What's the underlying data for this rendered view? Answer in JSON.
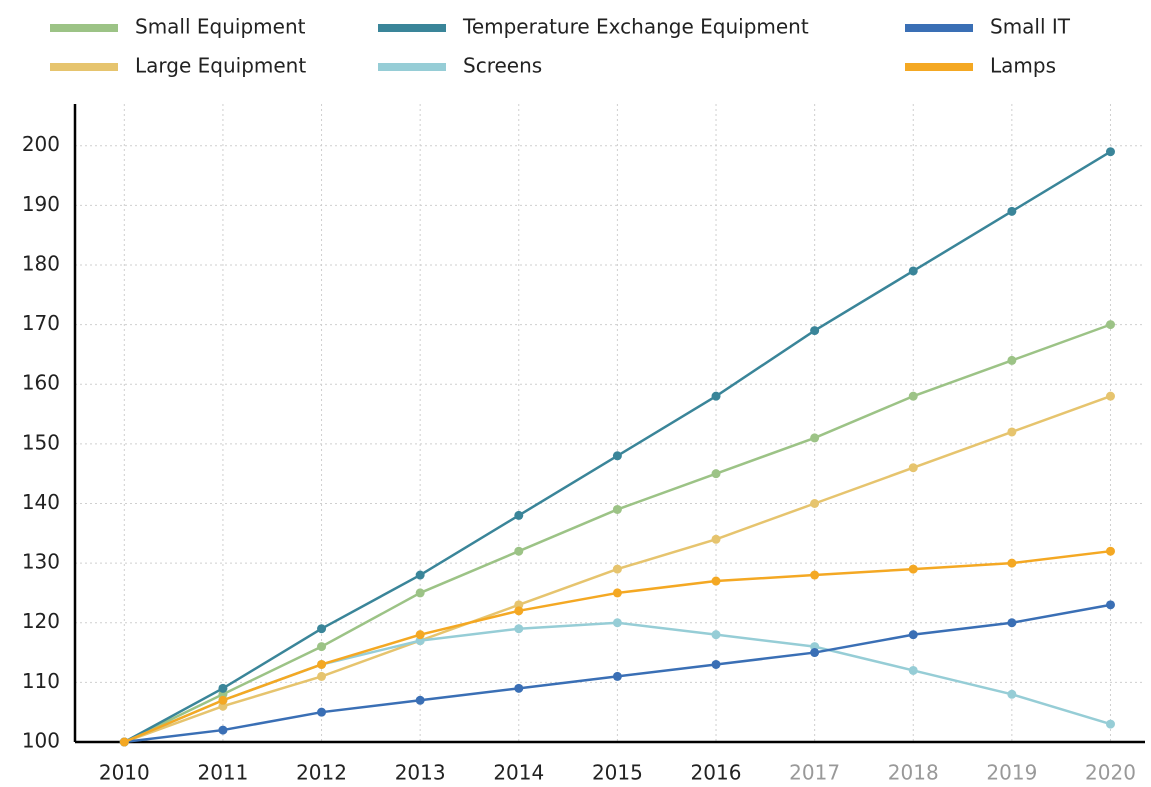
{
  "chart_data": {
    "type": "line",
    "x": [
      2010,
      2011,
      2012,
      2013,
      2014,
      2015,
      2016,
      2017,
      2018,
      2019,
      2020
    ],
    "xlim": [
      2009.5,
      2020.35
    ],
    "xticks": [
      2010,
      2011,
      2012,
      2013,
      2014,
      2015,
      2016,
      2017,
      2018,
      2019,
      2020
    ],
    "xtick_colors": [
      "#222222",
      "#222222",
      "#222222",
      "#222222",
      "#222222",
      "#222222",
      "#222222",
      "#999999",
      "#999999",
      "#999999",
      "#999999"
    ],
    "ylim": [
      100,
      207
    ],
    "yticks": [
      100,
      110,
      120,
      130,
      140,
      150,
      160,
      170,
      180,
      190,
      200
    ],
    "grid": true,
    "legend": "top",
    "series": [
      {
        "name": "Small Equipment",
        "color": "#9cc386",
        "values": [
          100,
          108,
          116,
          125,
          132,
          139,
          145,
          151,
          158,
          164,
          170
        ]
      },
      {
        "name": "Large Equipment",
        "color": "#e6c46e",
        "values": [
          100,
          106,
          111,
          117,
          123,
          129,
          134,
          140,
          146,
          152,
          158
        ]
      },
      {
        "name": "Temperature Exchange Equipment",
        "color": "#3a8599",
        "values": [
          100,
          109,
          119,
          128,
          138,
          148,
          158,
          169,
          179,
          189,
          199
        ]
      },
      {
        "name": "Screens",
        "color": "#96cdd6",
        "values": [
          100,
          107,
          113,
          117,
          119,
          120,
          118,
          116,
          112,
          108,
          103
        ]
      },
      {
        "name": "Small IT",
        "color": "#3a6fb5",
        "values": [
          100,
          102,
          105,
          107,
          109,
          111,
          113,
          115,
          118,
          120,
          123
        ]
      },
      {
        "name": "Lamps",
        "color": "#f4a823",
        "values": [
          100,
          107,
          113,
          118,
          122,
          125,
          127,
          128,
          129,
          130,
          132
        ]
      }
    ]
  }
}
